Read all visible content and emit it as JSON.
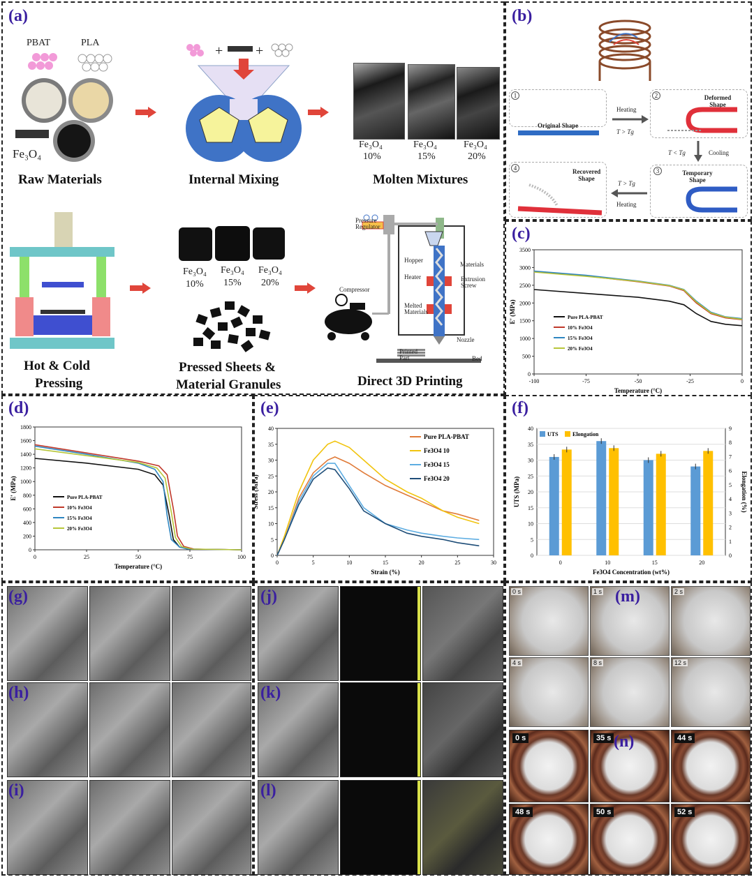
{
  "labels": {
    "a": "(a)",
    "b": "(b)",
    "c": "(c)",
    "d": "(d)",
    "e": "(e)",
    "f": "(f)",
    "g": "(g)",
    "h": "(h)",
    "i": "(i)",
    "j": "(j)",
    "k": "(k)",
    "l": "(l)",
    "m": "(m)",
    "n": "(n)"
  },
  "panel_a": {
    "pbat": "PBAT",
    "pla": "PLA",
    "fe3o4": "Fe₃O₄",
    "raw_materials": "Raw Materials",
    "internal_mixing": "Internal Mixing",
    "molten_mixtures": "Molten Mixtures",
    "plus": "+",
    "molten_labels": [
      {
        "name": "Fe₃O₄",
        "pct": "10%"
      },
      {
        "name": "Fe₃O₄",
        "pct": "15%"
      },
      {
        "name": "Fe₃O₄",
        "pct": "20%"
      }
    ],
    "hot_cold_1": "Hot & Cold",
    "hot_cold_2": "Pressing",
    "pressed_1": "Pressed Sheets &",
    "pressed_2": "Material Granules",
    "sheet_labels": [
      {
        "name": "Fe₃O₄",
        "pct": "10%"
      },
      {
        "name": "Fe₃O₄",
        "pct": "15%"
      },
      {
        "name": "Fe₃O₄",
        "pct": "20%"
      }
    ],
    "direct_3d": "Direct 3D Printing",
    "printer": {
      "pressure_regulator": "Pressure Regulator",
      "compressor": "Compressor",
      "hopper": "Hopper",
      "materials": "Materials",
      "heater": "Heater",
      "extrusion_screw": "Extrusion Screw",
      "melted_materials": "Melted Materials",
      "nozzle": "Nozzle",
      "printed_part": "Printed Part",
      "bed": "Bed"
    }
  },
  "panel_b": {
    "step1": "1",
    "step2": "2",
    "step3": "3",
    "step4": "4",
    "original": "Original Shape",
    "deformed": "Deformed Shape",
    "temporary": "Temporary Shape",
    "recovered": "Recovered Shape",
    "heating": "Heating",
    "cooling": "Cooling",
    "cond_up": "T > Tg",
    "cond_down": "T < Tg",
    "cond_back": "T > Tg"
  },
  "chart_data": [
    {
      "id": "c",
      "type": "line",
      "xlabel": "Temperature (°C)",
      "ylabel": "E' (MPa)",
      "xlim": [
        -100,
        0
      ],
      "ylim": [
        0,
        3500
      ],
      "xticks": [
        -100,
        -75,
        -50,
        -25,
        0
      ],
      "yticks": [
        0,
        500,
        1000,
        1500,
        2000,
        2500,
        3000,
        3500
      ],
      "legend": "middle-left",
      "series": [
        {
          "name": "Pure PLA-PBAT",
          "color": "#111111",
          "x": [
            -100,
            -75,
            -50,
            -35,
            -28,
            -22,
            -15,
            -8,
            0
          ],
          "y": [
            2380,
            2270,
            2160,
            2050,
            1950,
            1700,
            1480,
            1400,
            1360
          ]
        },
        {
          "name": "10% Fe3O4",
          "color": "#c0392b",
          "x": [
            -100,
            -75,
            -50,
            -35,
            -28,
            -22,
            -15,
            -8,
            0
          ],
          "y": [
            2880,
            2760,
            2600,
            2480,
            2350,
            2000,
            1700,
            1580,
            1530
          ]
        },
        {
          "name": "15% Fe3O4",
          "color": "#2e86c1",
          "x": [
            -100,
            -75,
            -50,
            -35,
            -28,
            -22,
            -15,
            -8,
            0
          ],
          "y": [
            2900,
            2780,
            2620,
            2500,
            2380,
            2050,
            1740,
            1610,
            1560
          ]
        },
        {
          "name": "20% Fe3O4",
          "color": "#b7c63a",
          "x": [
            -100,
            -75,
            -50,
            -35,
            -28,
            -22,
            -15,
            -8,
            0
          ],
          "y": [
            2870,
            2750,
            2610,
            2490,
            2370,
            2030,
            1720,
            1600,
            1540
          ]
        }
      ]
    },
    {
      "id": "d",
      "type": "line",
      "xlabel": "Temperature (°C)",
      "ylabel": "E' (MPa)",
      "xlim": [
        0,
        100
      ],
      "ylim": [
        0,
        1800
      ],
      "xticks": [
        0,
        25,
        50,
        75,
        100
      ],
      "yticks": [
        0,
        200,
        400,
        600,
        800,
        1000,
        1200,
        1400,
        1600,
        1800
      ],
      "legend": "middle-left",
      "series": [
        {
          "name": "Pure PLA-PBAT",
          "color": "#111111",
          "x": [
            0,
            25,
            50,
            58,
            62,
            65,
            67,
            70,
            75,
            100
          ],
          "y": [
            1340,
            1270,
            1180,
            1100,
            950,
            500,
            150,
            40,
            10,
            0
          ]
        },
        {
          "name": "10% Fe3O4",
          "color": "#c0392b",
          "x": [
            0,
            25,
            50,
            60,
            64,
            67,
            69,
            72,
            77,
            100
          ],
          "y": [
            1540,
            1420,
            1300,
            1230,
            1100,
            600,
            200,
            50,
            10,
            0
          ]
        },
        {
          "name": "15% Fe3O4",
          "color": "#2e86c1",
          "x": [
            0,
            25,
            50,
            58,
            62,
            64,
            66,
            70,
            74,
            100
          ],
          "y": [
            1520,
            1400,
            1270,
            1180,
            1000,
            500,
            150,
            40,
            10,
            0
          ]
        },
        {
          "name": "20% Fe3O4",
          "color": "#b7c63a",
          "x": [
            0,
            25,
            50,
            59,
            63,
            66,
            68,
            71,
            76,
            100
          ],
          "y": [
            1480,
            1380,
            1280,
            1200,
            1050,
            550,
            180,
            45,
            10,
            0
          ]
        }
      ]
    },
    {
      "id": "e",
      "type": "line",
      "xlabel": "Strain (%)",
      "ylabel": "Stress (MPa)",
      "xlim": [
        0,
        30
      ],
      "ylim": [
        0,
        40
      ],
      "xticks": [
        0,
        5,
        10,
        15,
        20,
        25,
        30
      ],
      "yticks": [
        0,
        5,
        10,
        15,
        20,
        25,
        30,
        35,
        40
      ],
      "legend": "top-right",
      "series": [
        {
          "name": "Pure PLA-PBAT",
          "color": "#e07b39",
          "x": [
            0,
            1,
            3,
            5,
            7,
            8,
            10,
            12,
            15,
            18,
            20,
            23,
            25,
            28
          ],
          "y": [
            0,
            5,
            18,
            26,
            30,
            31,
            29,
            26,
            22,
            19,
            17,
            14,
            13,
            11
          ]
        },
        {
          "name": "Fe3O4 10",
          "color": "#f1c40f",
          "x": [
            0,
            1,
            3,
            5,
            7,
            8,
            10,
            12,
            15,
            18,
            20,
            23,
            25,
            28
          ],
          "y": [
            0,
            6,
            20,
            30,
            35,
            36,
            34,
            30,
            24,
            20,
            18,
            14,
            12,
            10
          ]
        },
        {
          "name": "Fe3O4 15",
          "color": "#5dade2",
          "x": [
            0,
            1,
            3,
            5,
            7,
            8,
            10,
            12,
            15,
            18,
            20,
            23,
            25,
            28
          ],
          "y": [
            0,
            5,
            17,
            25,
            29,
            29,
            22,
            15,
            10,
            8,
            7,
            6,
            5.5,
            5
          ]
        },
        {
          "name": "Fe3O4 20",
          "color": "#1f4e79",
          "x": [
            0,
            1,
            3,
            5,
            7,
            8,
            10,
            12,
            15,
            18,
            20,
            23,
            25,
            28
          ],
          "y": [
            0,
            5,
            16,
            24,
            27.5,
            27,
            21,
            14,
            10,
            7,
            6,
            5,
            4,
            3
          ]
        }
      ]
    },
    {
      "id": "f",
      "type": "bar",
      "xlabel": "Fe3O4 Concentration (wt%)",
      "ylabel": "UTS (MPa)",
      "y2label": "Elongation (%)",
      "categories": [
        "0",
        "10",
        "15",
        "20"
      ],
      "ylim": [
        0,
        40
      ],
      "y2lim": [
        0,
        9
      ],
      "yticks": [
        0,
        5,
        10,
        15,
        20,
        25,
        30,
        35,
        40
      ],
      "y2ticks": [
        0,
        1,
        2,
        3,
        4,
        5,
        6,
        7,
        8,
        9
      ],
      "legend": "top-left",
      "series": [
        {
          "name": "UTS",
          "color": "#5b9bd5",
          "axis": "left",
          "values": [
            31,
            36,
            30,
            28
          ]
        },
        {
          "name": "Elongation",
          "color": "#ffc000",
          "axis": "right",
          "values": [
            7.5,
            7.6,
            7.2,
            7.4
          ]
        }
      ]
    }
  ],
  "panel_m": {
    "times": [
      "0 s",
      "1 s",
      "2 s",
      "4 s",
      "8 s",
      "12 s"
    ]
  },
  "panel_n": {
    "times": [
      "0 s",
      "35 s",
      "44 s",
      "48 s",
      "50 s",
      "52 s"
    ]
  }
}
